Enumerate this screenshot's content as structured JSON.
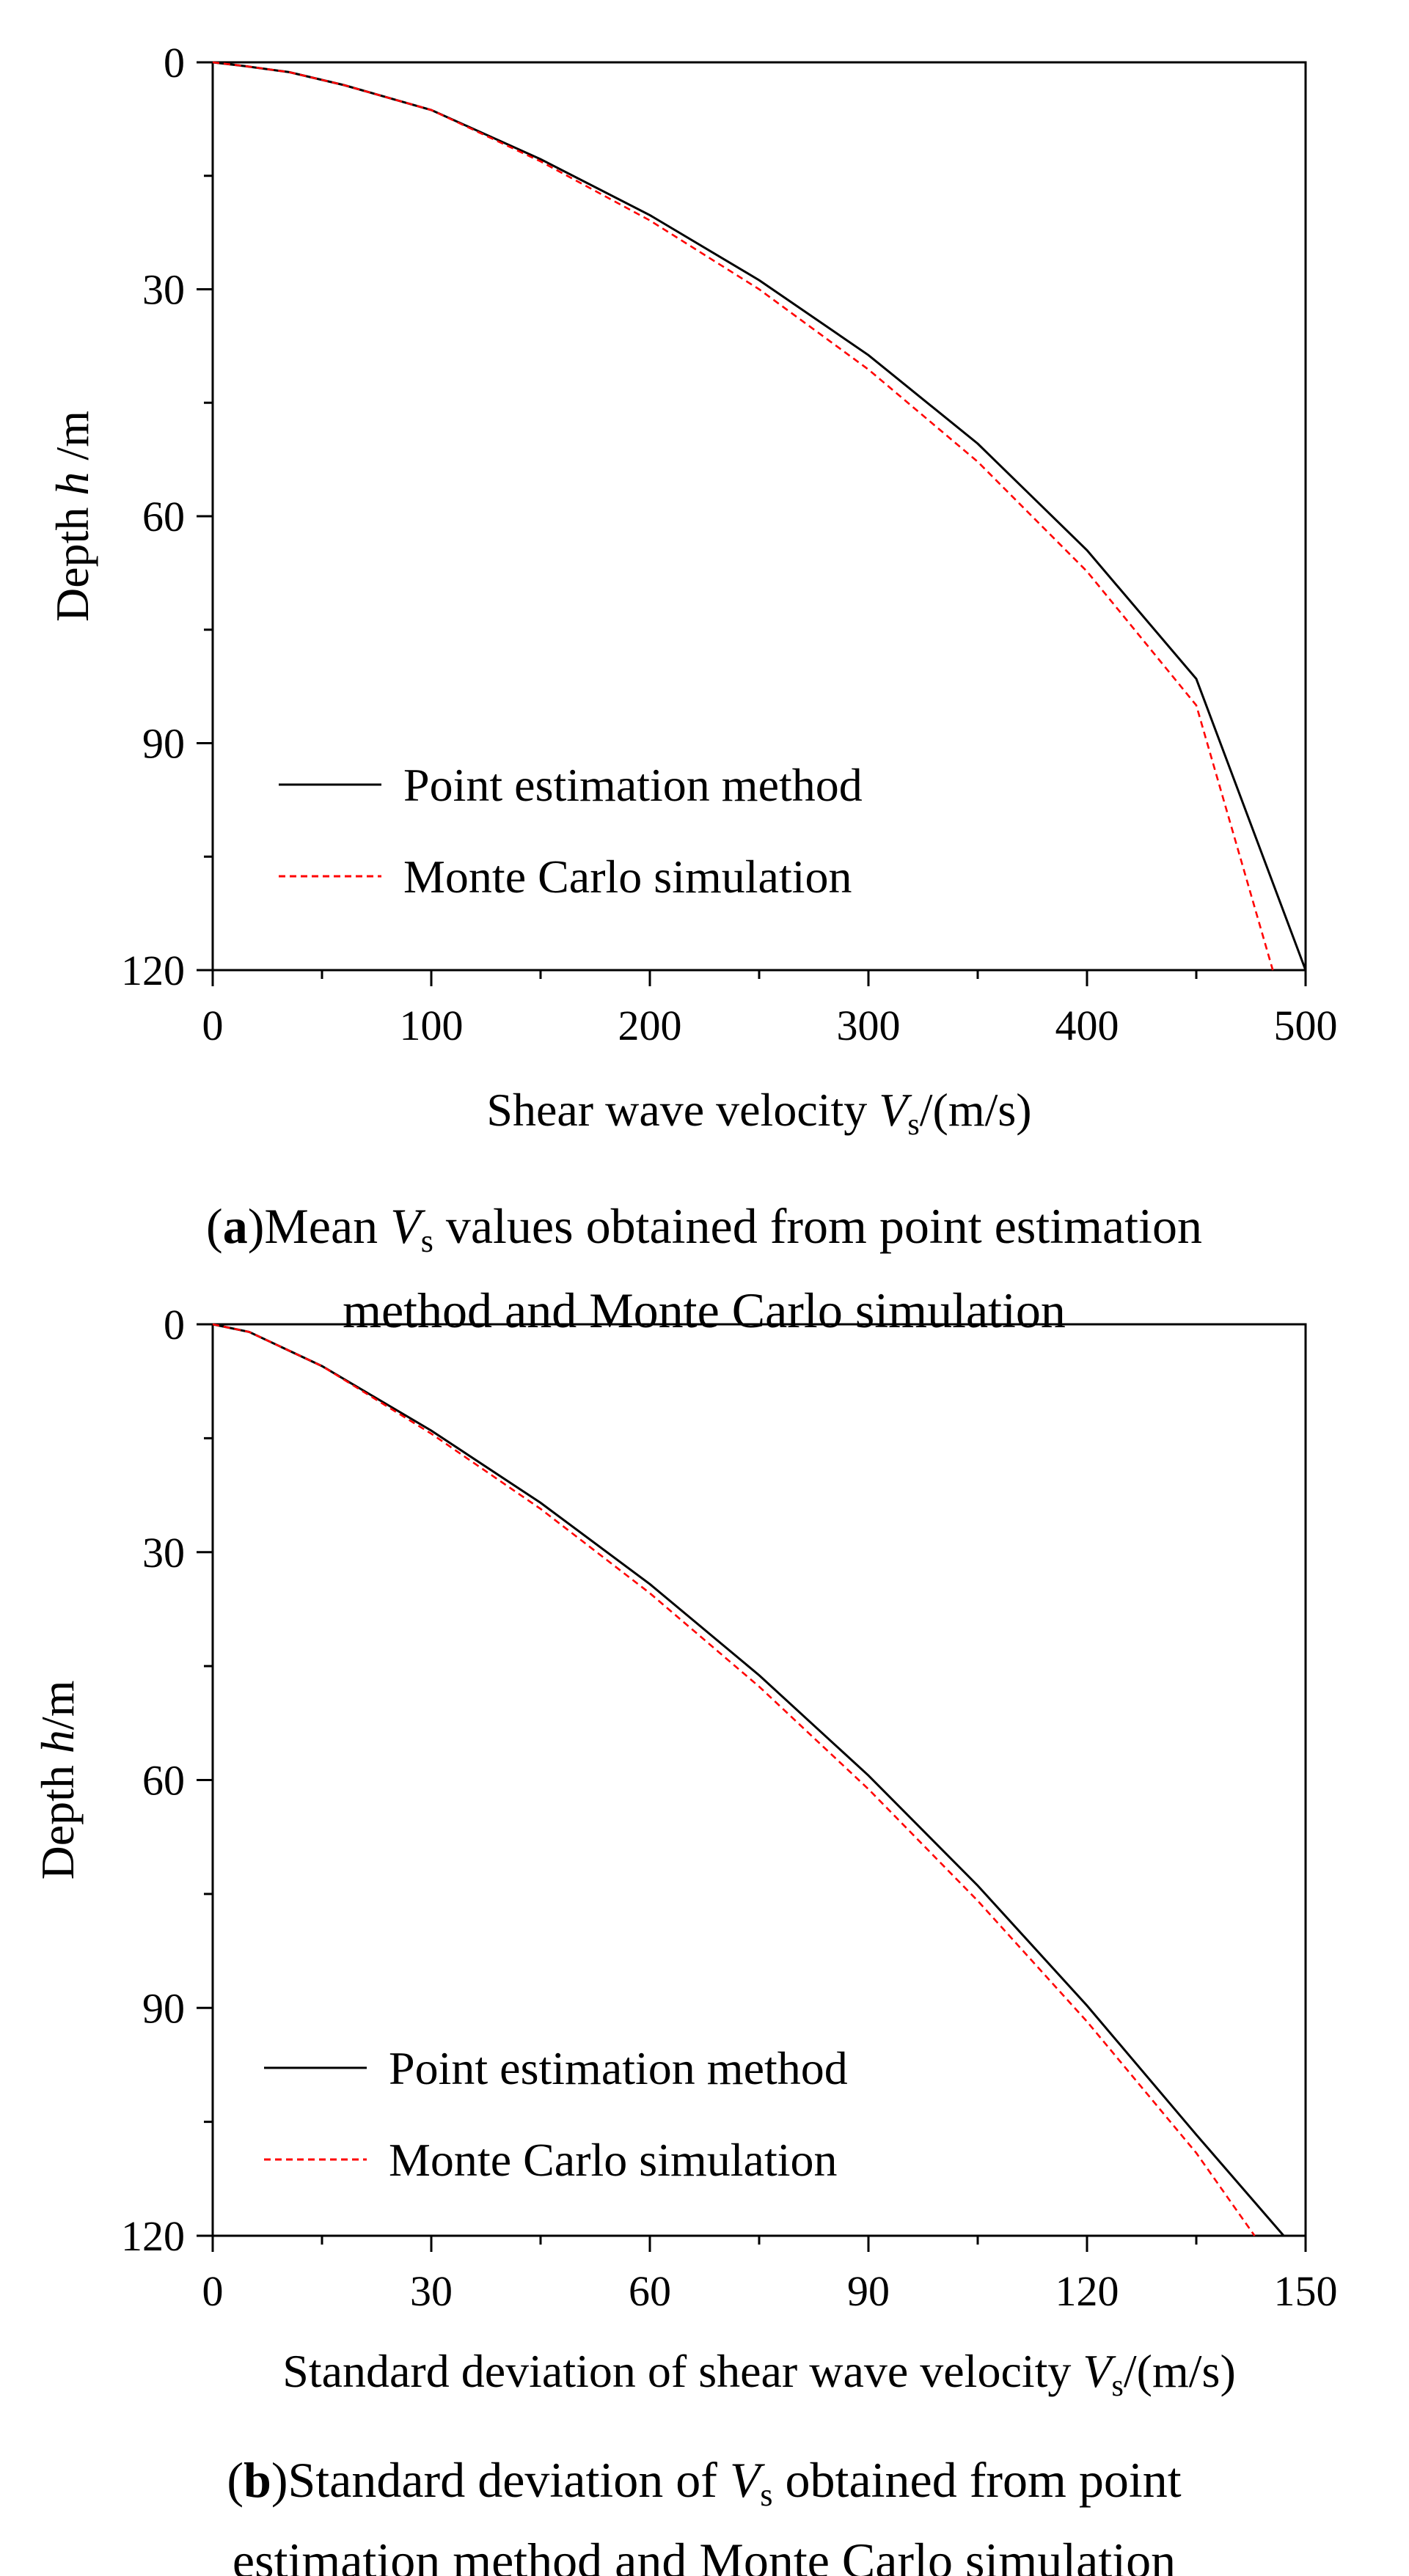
{
  "chart_data": [
    {
      "type": "line",
      "panel": "a",
      "caption": {
        "label": "a",
        "line1_a": "Mean ",
        "line1_var": "V",
        "line1_sub": "s",
        "line1_b": " values obtained from point estimation",
        "line2": "method and Monte Carlo simulation"
      },
      "xlabel": {
        "text": "Shear wave velocity ",
        "var": "V",
        "sub": "s",
        "unit": "/(m/s)"
      },
      "ylabel": {
        "text": "Depth ",
        "var": "h",
        "unit": " /m"
      },
      "xlim": [
        0,
        500
      ],
      "ylim": [
        0,
        120
      ],
      "y_inverted": true,
      "x_ticks": [
        0,
        100,
        200,
        300,
        400,
        500
      ],
      "y_ticks": [
        0,
        30,
        60,
        90,
        120
      ],
      "x_minor_step": 50,
      "y_minor_step": 15,
      "legend_position": "lower-left",
      "series": [
        {
          "name": "Point estimation method",
          "color": "#000000",
          "style": "solid",
          "points": [
            [
              0,
              0
            ],
            [
              15,
              0.5
            ],
            [
              35,
              1.3
            ],
            [
              60,
              3
            ],
            [
              100,
              6.3
            ],
            [
              150,
              12.8
            ],
            [
              200,
              20.2
            ],
            [
              250,
              28.8
            ],
            [
              300,
              38.7
            ],
            [
              350,
              50.4
            ],
            [
              400,
              64.5
            ],
            [
              450,
              81.5
            ],
            [
              500,
              120
            ]
          ]
        },
        {
          "name": "Monte Carlo simulation",
          "color": "#ff0000",
          "style": "dashed",
          "points": [
            [
              0,
              0
            ],
            [
              15,
              0.5
            ],
            [
              35,
              1.3
            ],
            [
              60,
              3
            ],
            [
              100,
              6.3
            ],
            [
              150,
              13.1
            ],
            [
              200,
              20.9
            ],
            [
              250,
              30
            ],
            [
              300,
              40.6
            ],
            [
              350,
              52.8
            ],
            [
              400,
              67.3
            ],
            [
              450,
              85
            ],
            [
              485,
              120
            ]
          ]
        }
      ]
    },
    {
      "type": "line",
      "panel": "b",
      "caption": {
        "label": "b",
        "line1_a": "Standard deviation of ",
        "line1_var": "V",
        "line1_sub": "s",
        "line1_b": " obtained from point",
        "line2": "estimation method and Monte Carlo simulation"
      },
      "xlabel": {
        "text": "Standard deviation of shear wave velocity ",
        "var": "V",
        "sub": "s",
        "unit": "/(m/s)"
      },
      "ylabel": {
        "text": "Depth ",
        "var": "h",
        "unit": "/m"
      },
      "xlim": [
        0,
        150
      ],
      "ylim": [
        0,
        120
      ],
      "y_inverted": true,
      "x_ticks": [
        0,
        30,
        60,
        90,
        120,
        150
      ],
      "y_ticks": [
        0,
        30,
        60,
        90,
        120
      ],
      "x_minor_step": 15,
      "y_minor_step": 15,
      "legend_position": "lower-left",
      "series": [
        {
          "name": "Point estimation method",
          "color": "#000000",
          "style": "solid",
          "points": [
            [
              0,
              0
            ],
            [
              5,
              1
            ],
            [
              15,
              5.5
            ],
            [
              30,
              14
            ],
            [
              45,
              23.5
            ],
            [
              60,
              34.2
            ],
            [
              75,
              46.2
            ],
            [
              90,
              59.4
            ],
            [
              105,
              73.9
            ],
            [
              120,
              89.7
            ],
            [
              135,
              106.7
            ],
            [
              147,
              120
            ]
          ]
        },
        {
          "name": "Monte Carlo simulation",
          "color": "#ff0000",
          "style": "dashed",
          "points": [
            [
              0,
              0
            ],
            [
              5,
              1
            ],
            [
              15,
              5.5
            ],
            [
              30,
              14.4
            ],
            [
              45,
              24.3
            ],
            [
              60,
              35.4
            ],
            [
              75,
              47.7
            ],
            [
              90,
              61.2
            ],
            [
              105,
              75.9
            ],
            [
              120,
              91.8
            ],
            [
              135,
              109.1
            ],
            [
              143,
              120
            ]
          ]
        }
      ]
    }
  ]
}
